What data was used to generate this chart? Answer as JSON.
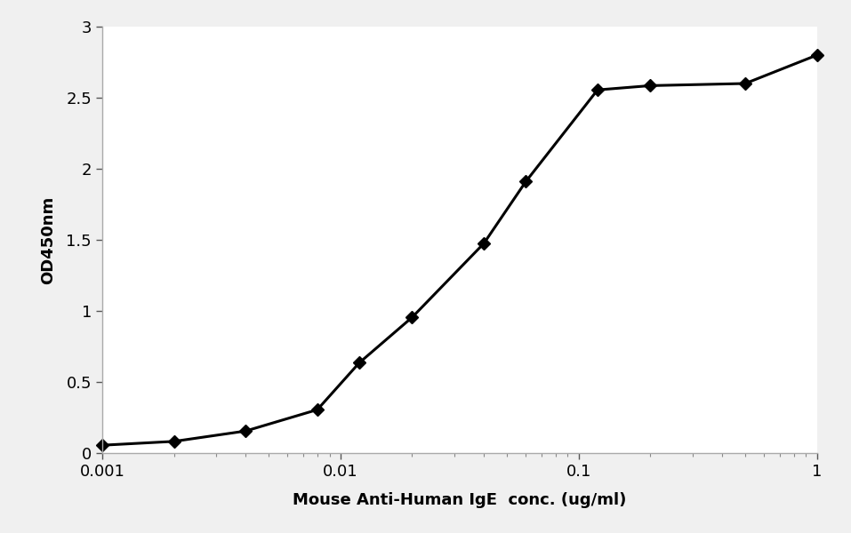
{
  "x": [
    0.001,
    0.002,
    0.004,
    0.008,
    0.012,
    0.02,
    0.04,
    0.06,
    0.12,
    0.2,
    0.5,
    1.0
  ],
  "y": [
    0.055,
    0.082,
    0.155,
    0.305,
    0.635,
    0.955,
    1.475,
    1.91,
    2.555,
    2.585,
    2.6,
    2.8
  ],
  "xlabel": "Mouse Anti-Human IgE  conc. (ug/ml)",
  "ylabel": "OD450nm",
  "xlim": [
    0.001,
    1.0
  ],
  "ylim": [
    0,
    3.0
  ],
  "yticks": [
    0,
    0.5,
    1,
    1.5,
    2,
    2.5,
    3
  ],
  "xtick_labels": {
    "0.001": "0.001",
    "0.01": "0.01",
    "0.1": "0.1",
    "1.0": "1"
  },
  "line_color": "#000000",
  "marker": "D",
  "markersize": 7,
  "linewidth": 2.2,
  "figure_bg": "#f0f0f0",
  "axes_bg": "#ffffff",
  "border_color": "#aaaaaa",
  "xlabel_fontsize": 13,
  "ylabel_fontsize": 13,
  "tick_fontsize": 13
}
